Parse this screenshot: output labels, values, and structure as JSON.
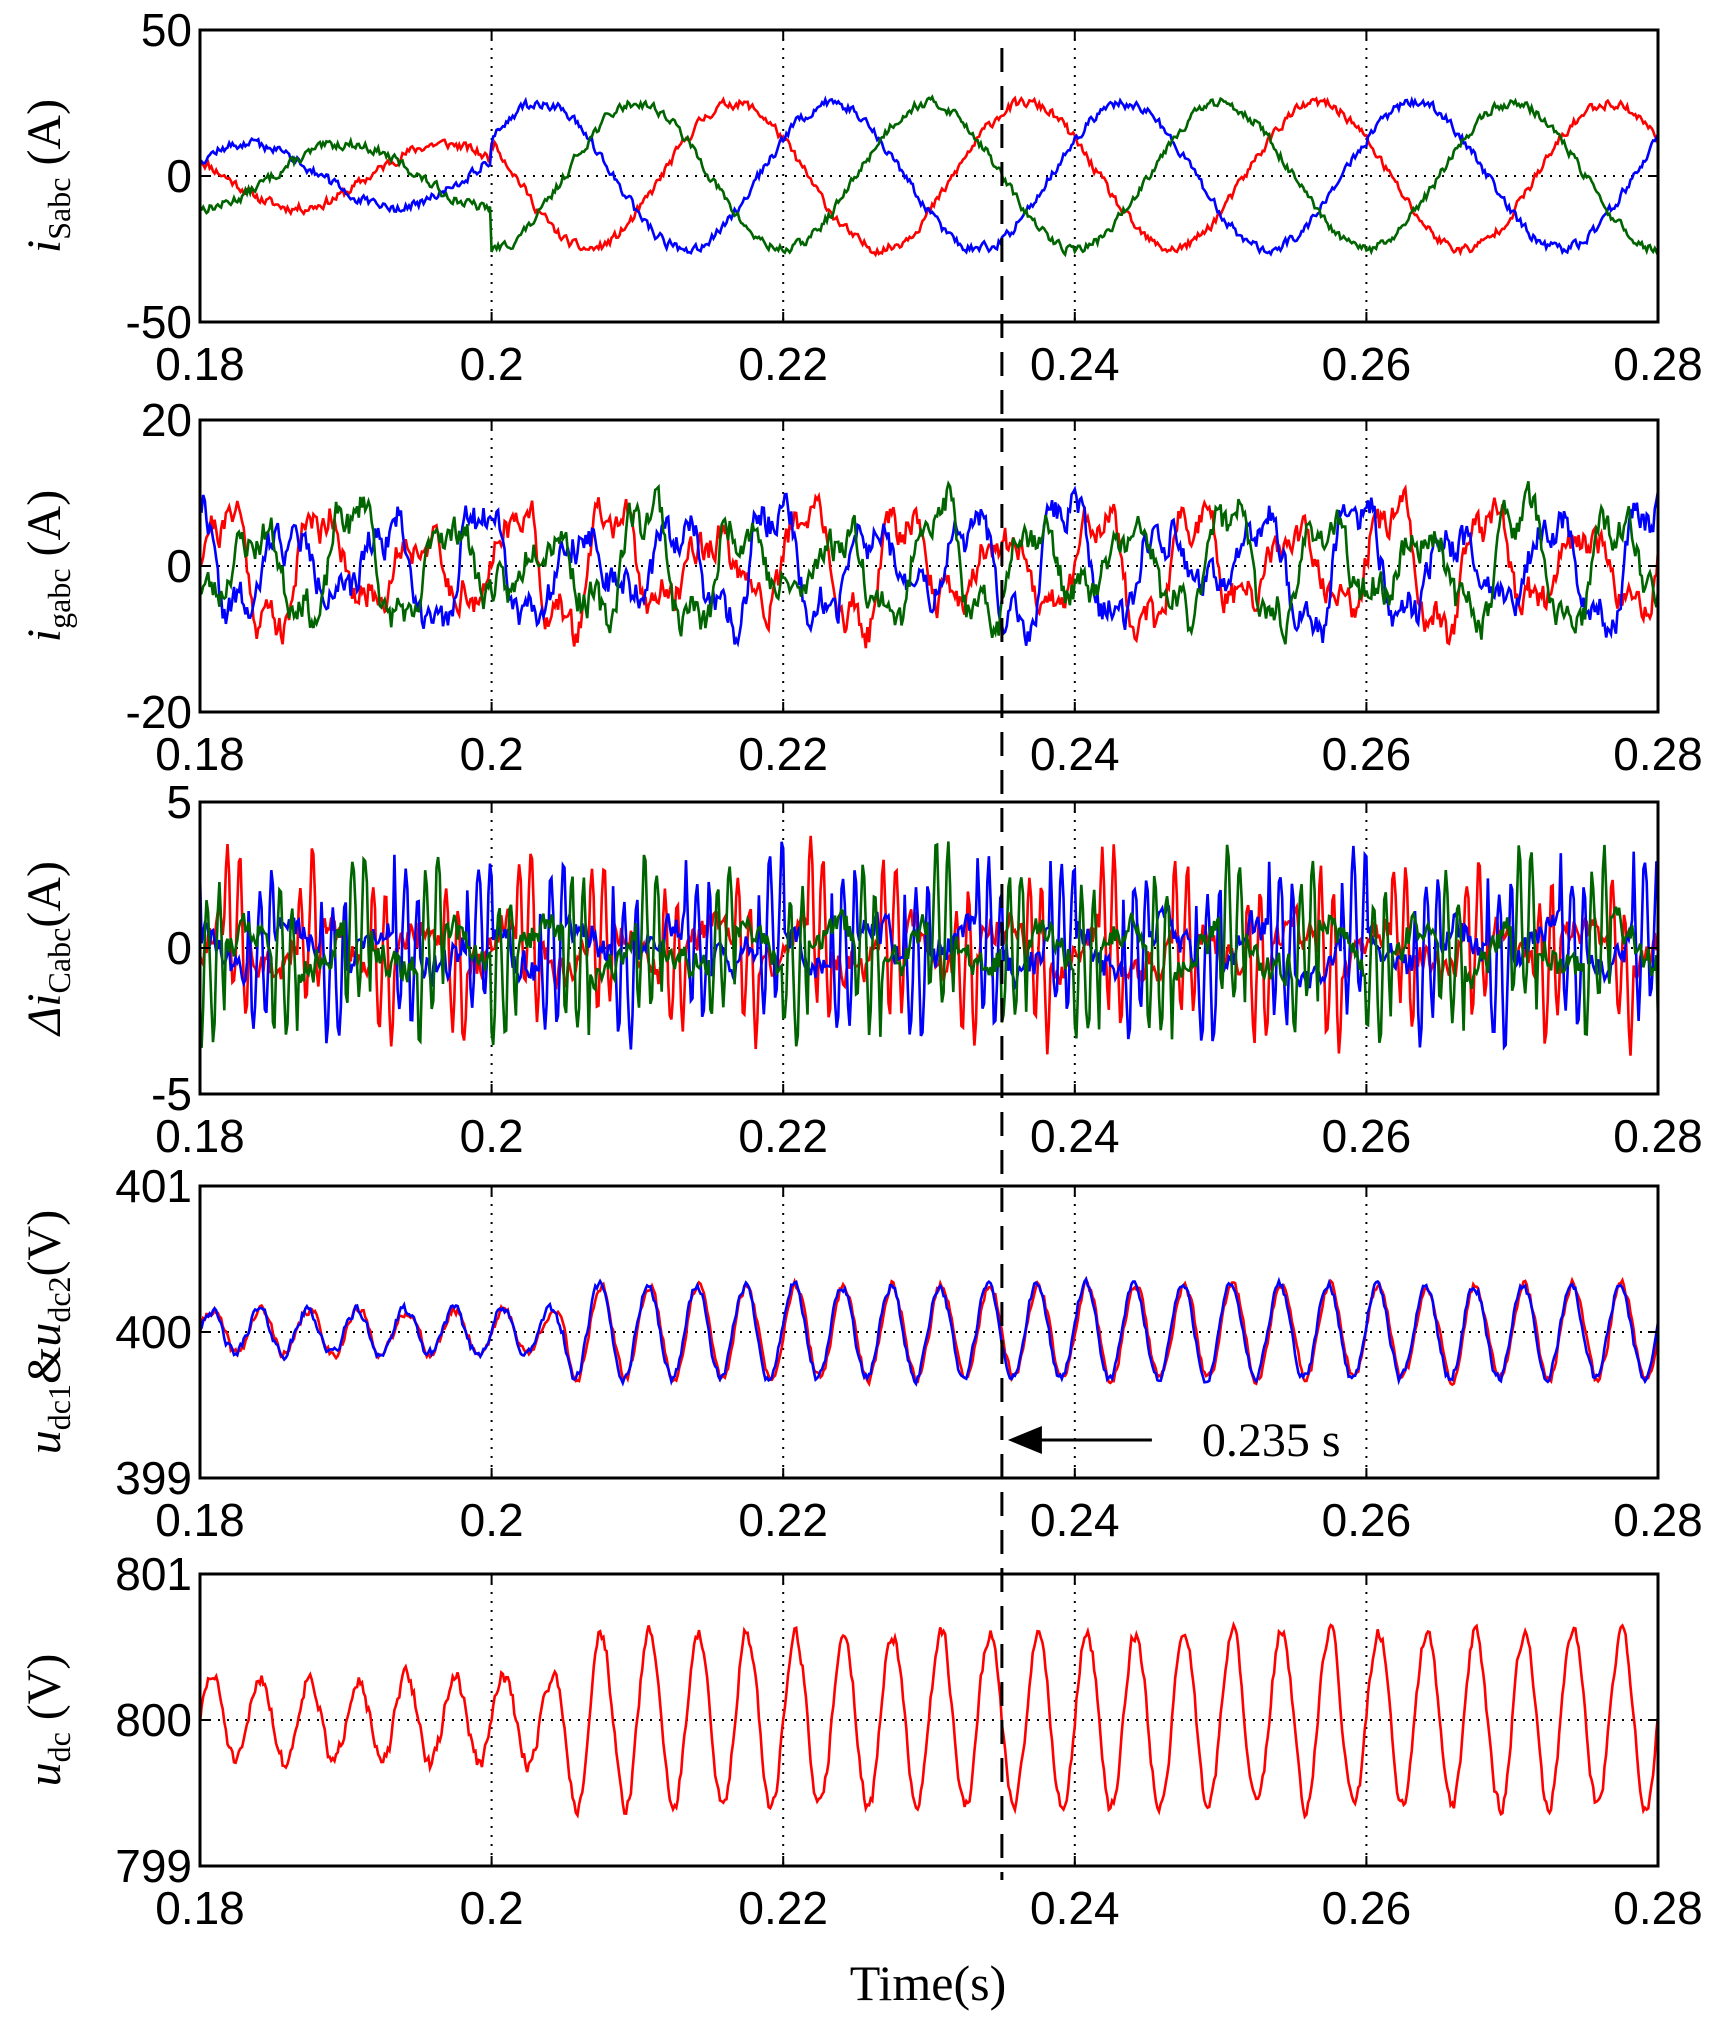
{
  "figure": {
    "xlabel": "Time(s)",
    "marker_time": 0.235,
    "marker_label": "0.235 s",
    "colors": {
      "phase_a": "#ff0000",
      "phase_b": "#0000ff",
      "phase_c": "#006400",
      "axis": "#000000"
    }
  },
  "chart_data": [
    {
      "type": "line",
      "title": "",
      "ylabel": {
        "var": "i",
        "sub": "Sabc",
        "unit": " (A)"
      },
      "xlim": [
        0.18,
        0.28
      ],
      "ylim": [
        -50,
        50
      ],
      "xticks": [
        0.18,
        0.2,
        0.22,
        0.24,
        0.26,
        0.28
      ],
      "xtick_labels": [
        "0.18",
        "0.2",
        "0.22",
        "0.24",
        "0.26",
        "0.28"
      ],
      "yticks": [
        -50,
        0,
        50
      ],
      "ytick_labels": [
        "-50",
        "0",
        "50"
      ],
      "grid": true,
      "series": [
        {
          "name": "a",
          "color": "#ff0000",
          "gen": {
            "kind": "sine",
            "freq": 50,
            "amp_before": 11,
            "amp_after": 25,
            "t_step": 0.2,
            "phase_deg": 150,
            "offset": 0,
            "noise": 1.5,
            "seed": 11
          }
        },
        {
          "name": "b",
          "color": "#0000ff",
          "gen": {
            "kind": "sine",
            "freq": 50,
            "amp_before": 11,
            "amp_after": 25,
            "t_step": 0.2,
            "phase_deg": 30,
            "offset": 0,
            "noise": 1.5,
            "seed": 12
          }
        },
        {
          "name": "c",
          "color": "#006400",
          "gen": {
            "kind": "sine",
            "freq": 50,
            "amp_before": 11,
            "amp_after": 25,
            "t_step": 0.2,
            "phase_deg": -90,
            "offset": 0,
            "noise": 1.5,
            "seed": 13
          }
        }
      ]
    },
    {
      "type": "line",
      "title": "",
      "ylabel": {
        "var": "i",
        "sub": "gabc",
        "unit": " (A)"
      },
      "xlim": [
        0.18,
        0.28
      ],
      "ylim": [
        -20,
        20
      ],
      "xticks": [
        0.18,
        0.2,
        0.22,
        0.24,
        0.26,
        0.28
      ],
      "xtick_labels": [
        "0.18",
        "0.2",
        "0.22",
        "0.24",
        "0.26",
        "0.28"
      ],
      "yticks": [
        -20,
        0,
        20
      ],
      "ytick_labels": [
        "-20",
        "0",
        "20"
      ],
      "grid": true,
      "series": [
        {
          "name": "a",
          "color": "#ff0000",
          "gen": {
            "kind": "harmonic",
            "freq": 150,
            "amp": 9,
            "phase_deg": 0,
            "offset": 0,
            "noise": 2,
            "seed": 21
          }
        },
        {
          "name": "b",
          "color": "#0000ff",
          "gen": {
            "kind": "harmonic",
            "freq": 150,
            "amp": 9,
            "phase_deg": 120,
            "offset": 0,
            "noise": 2,
            "seed": 22
          }
        },
        {
          "name": "c",
          "color": "#006400",
          "gen": {
            "kind": "harmonic",
            "freq": 150,
            "amp": 9,
            "phase_deg": 240,
            "offset": 0,
            "noise": 2,
            "seed": 23
          }
        }
      ]
    },
    {
      "type": "line",
      "title": "",
      "ylabel": {
        "prefix": "Δ",
        "var": "i",
        "sub": "Cabc",
        "unit": "(A)"
      },
      "xlim": [
        0.18,
        0.28
      ],
      "ylim": [
        -5,
        5
      ],
      "xticks": [
        0.18,
        0.2,
        0.22,
        0.24,
        0.26,
        0.28
      ],
      "xtick_labels": [
        "0.18",
        "0.2",
        "0.22",
        "0.24",
        "0.26",
        "0.28"
      ],
      "yticks": [
        -5,
        0,
        5
      ],
      "ytick_labels": [
        "-5",
        "0",
        "5"
      ],
      "grid": true,
      "series": [
        {
          "name": "a",
          "color": "#ff0000",
          "gen": {
            "kind": "spiky",
            "freq": 150,
            "amp": 2.5,
            "phase_deg": 0,
            "offset": 0,
            "noise": 0.5,
            "seed": 31
          }
        },
        {
          "name": "b",
          "color": "#0000ff",
          "gen": {
            "kind": "spiky",
            "freq": 150,
            "amp": 2.5,
            "phase_deg": 120,
            "offset": 0,
            "noise": 0.5,
            "seed": 32
          }
        },
        {
          "name": "c",
          "color": "#006400",
          "gen": {
            "kind": "spiky",
            "freq": 150,
            "amp": 2.5,
            "phase_deg": 240,
            "offset": 0,
            "noise": 0.5,
            "seed": 33
          }
        }
      ]
    },
    {
      "type": "line",
      "title": "",
      "ylabel": {
        "var": "u",
        "sub": "dc1",
        "amp": "&",
        "var2": "u",
        "sub2": "dc2",
        "unit": "(V)"
      },
      "xlim": [
        0.18,
        0.28
      ],
      "ylim": [
        399,
        401
      ],
      "xticks": [
        0.18,
        0.2,
        0.22,
        0.24,
        0.26,
        0.28
      ],
      "xtick_labels": [
        "0.18",
        "0.2",
        "0.22",
        "0.24",
        "0.26",
        "0.28"
      ],
      "yticks": [
        399,
        400,
        401
      ],
      "ytick_labels": [
        "399",
        "400",
        "401"
      ],
      "grid": true,
      "series": [
        {
          "name": "u_dc1",
          "color": "#ff0000",
          "gen": {
            "kind": "ripple",
            "freq": 300,
            "amp_before": 0.15,
            "amp_after": 0.32,
            "t_step": 0.205,
            "phase_deg": 0,
            "offset": 400,
            "noise": 0.03,
            "seed": 41
          }
        },
        {
          "name": "u_dc2",
          "color": "#0000ff",
          "gen": {
            "kind": "ripple",
            "freq": 300,
            "amp_before": 0.15,
            "amp_after": 0.32,
            "t_step": 0.205,
            "phase_deg": 12,
            "offset": 400,
            "noise": 0.03,
            "seed": 42
          }
        }
      ]
    },
    {
      "type": "line",
      "title": "",
      "ylabel": {
        "var": "u",
        "sub": "dc",
        "unit": " (V)"
      },
      "xlim": [
        0.18,
        0.28
      ],
      "ylim": [
        799,
        801
      ],
      "xticks": [
        0.18,
        0.2,
        0.22,
        0.24,
        0.26,
        0.28
      ],
      "xtick_labels": [
        "0.18",
        "0.2",
        "0.22",
        "0.24",
        "0.26",
        "0.28"
      ],
      "yticks": [
        799,
        800,
        801
      ],
      "ytick_labels": [
        "799",
        "800",
        "801"
      ],
      "grid": true,
      "series": [
        {
          "name": "u_dc",
          "color": "#ff0000",
          "gen": {
            "kind": "ripple",
            "freq": 300,
            "amp_before": 0.3,
            "amp_after": 0.6,
            "t_step": 0.205,
            "phase_deg": 0,
            "offset": 800,
            "noise": 0.05,
            "seed": 51
          }
        }
      ]
    }
  ]
}
